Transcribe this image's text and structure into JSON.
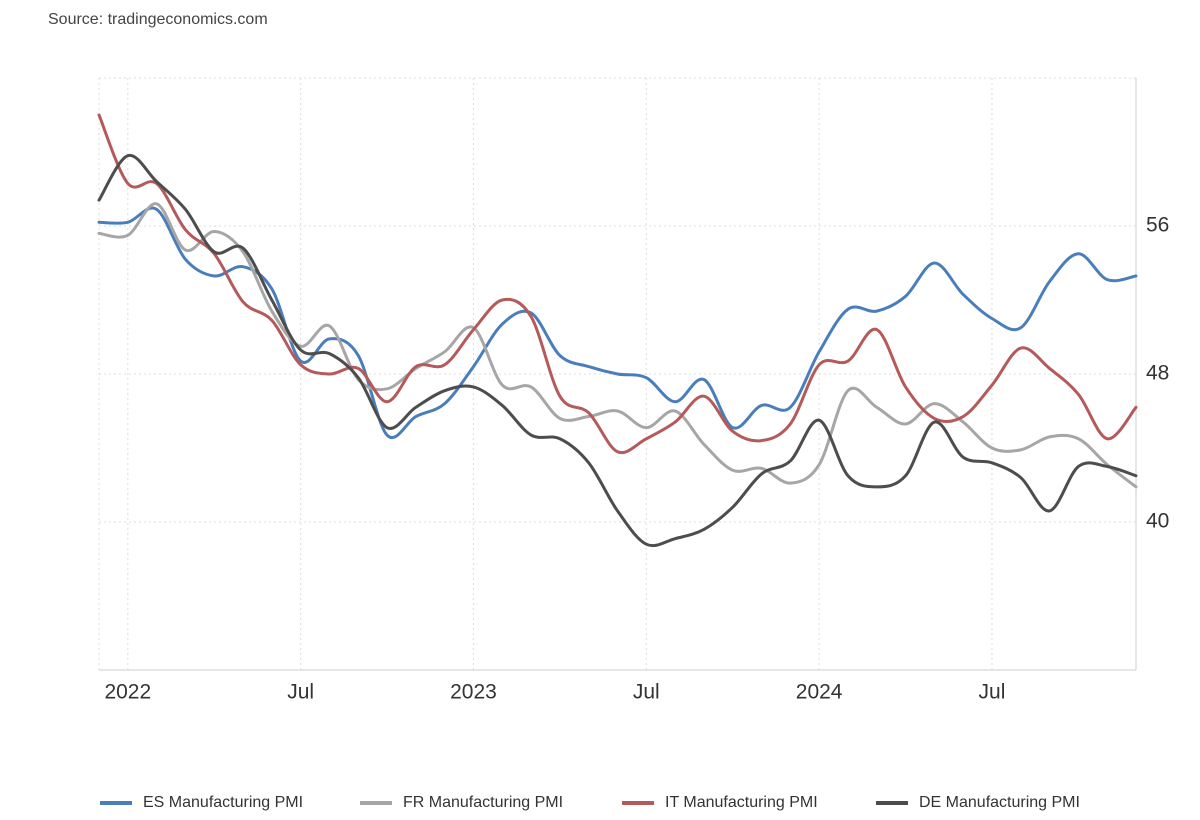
{
  "chart_data": {
    "type": "line",
    "source": "Source: tradingeconomics.com",
    "x": [
      "2021-12",
      "2022-01",
      "2022-02",
      "2022-03",
      "2022-04",
      "2022-05",
      "2022-06",
      "2022-07",
      "2022-08",
      "2022-09",
      "2022-10",
      "2022-11",
      "2022-12",
      "2023-01",
      "2023-02",
      "2023-03",
      "2023-04",
      "2023-05",
      "2023-06",
      "2023-07",
      "2023-08",
      "2023-09",
      "2023-10",
      "2023-11",
      "2023-12",
      "2024-01",
      "2024-02",
      "2024-03",
      "2024-04",
      "2024-05",
      "2024-06",
      "2024-07",
      "2024-08",
      "2024-09",
      "2024-10",
      "2024-11",
      "2024-12"
    ],
    "xlim": [
      "2021-12",
      "2024-12"
    ],
    "xticks": [
      {
        "value": "2022-01",
        "label": "2022"
      },
      {
        "value": "2022-07",
        "label": "Jul"
      },
      {
        "value": "2023-01",
        "label": "2023"
      },
      {
        "value": "2023-07",
        "label": "Jul"
      },
      {
        "value": "2024-01",
        "label": "2024"
      },
      {
        "value": "2024-07",
        "label": "Jul"
      }
    ],
    "ylim": [
      32,
      64
    ],
    "yticks": [
      40,
      48,
      56
    ],
    "grid": true,
    "legend": "bottom",
    "series": [
      {
        "name": "ES Manufacturing PMI",
        "color": "#4a7ebb",
        "values": [
          56.2,
          56.2,
          56.9,
          54.2,
          53.3,
          53.8,
          52.6,
          48.7,
          49.9,
          49.0,
          44.7,
          45.7,
          46.4,
          48.4,
          50.7,
          51.3,
          49.0,
          48.4,
          48.0,
          47.8,
          46.5,
          47.7,
          45.1,
          46.3,
          46.2,
          49.2,
          51.5,
          51.4,
          52.2,
          54.0,
          52.3,
          51.0,
          50.5,
          53.0,
          54.5,
          53.1,
          53.3
        ]
      },
      {
        "name": "FR Manufacturing PMI",
        "color": "#a6a6a6",
        "values": [
          55.6,
          55.5,
          57.2,
          54.7,
          55.7,
          54.6,
          51.4,
          49.5,
          50.6,
          47.7,
          47.2,
          48.3,
          49.2,
          50.5,
          47.4,
          47.3,
          45.6,
          45.7,
          46.0,
          45.1,
          46.0,
          44.2,
          42.8,
          42.9,
          42.1,
          43.1,
          47.1,
          46.2,
          45.3,
          46.4,
          45.4,
          44.0,
          43.9,
          44.6,
          44.5,
          43.1,
          41.9
        ]
      },
      {
        "name": "IT Manufacturing PMI",
        "color": "#b55a5a",
        "values": [
          62.0,
          58.3,
          58.3,
          55.8,
          54.5,
          51.9,
          50.9,
          48.5,
          48.0,
          48.3,
          46.5,
          48.4,
          48.5,
          50.4,
          52.0,
          51.1,
          46.8,
          45.9,
          43.8,
          44.5,
          45.4,
          46.8,
          44.9,
          44.4,
          45.3,
          48.5,
          48.7,
          50.4,
          47.3,
          45.6,
          45.7,
          47.4,
          49.4,
          48.3,
          46.9,
          44.5,
          46.2
        ]
      },
      {
        "name": "DE Manufacturing PMI",
        "color": "#4d4d4d",
        "values": [
          57.4,
          59.8,
          58.4,
          56.9,
          54.6,
          54.8,
          52.0,
          49.3,
          49.1,
          47.8,
          45.1,
          46.2,
          47.1,
          47.3,
          46.3,
          44.7,
          44.5,
          43.2,
          40.6,
          38.8,
          39.1,
          39.6,
          40.8,
          42.6,
          43.3,
          45.5,
          42.5,
          41.9,
          42.5,
          45.4,
          43.5,
          43.2,
          42.4,
          40.6,
          43.0,
          43.0,
          42.5
        ]
      }
    ]
  }
}
